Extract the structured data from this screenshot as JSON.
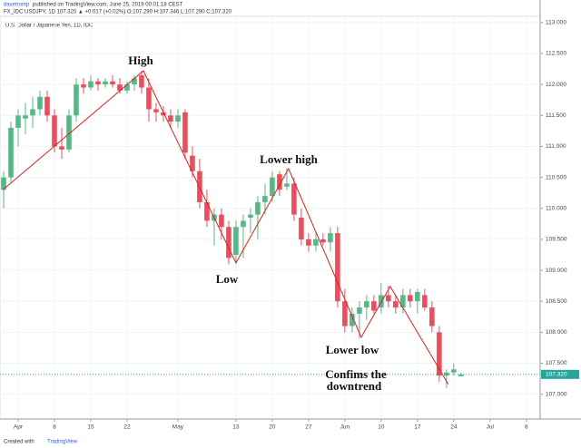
{
  "header": {
    "author": "davetromp",
    "published": "published on TradingView.com, June 25, 2019 00:01:18 CEST",
    "quote": "FX_IDC:USDJPY, 1D 107.320 ▲ +0.017 (+0.02%) O:107.290 H:107.346 L:107.290 C:107.320"
  },
  "footer": {
    "text": "Created with",
    "brand": "TradingView"
  },
  "chart_data": {
    "type": "candlestick",
    "subtitle": "U.S. Dollar / Japanese Yen, 1D, IDC",
    "up_color": "#53b987",
    "down_color": "#eb4d5c",
    "grid": true,
    "xlim": [
      -2.5,
      71.9
    ],
    "ylim": [
      106.6,
      113.1
    ],
    "xticks": [
      {
        "value": 0,
        "label": "Apr"
      },
      {
        "value": 5,
        "label": "8"
      },
      {
        "value": 10,
        "label": "15"
      },
      {
        "value": 15,
        "label": "22"
      },
      {
        "value": 22,
        "label": "May"
      },
      {
        "value": 30,
        "label": "13"
      },
      {
        "value": 35,
        "label": "20"
      },
      {
        "value": 40,
        "label": "27"
      },
      {
        "value": 45,
        "label": "Jun"
      },
      {
        "value": 50,
        "label": "10"
      },
      {
        "value": 55,
        "label": "17"
      },
      {
        "value": 60,
        "label": "24"
      },
      {
        "value": 65,
        "label": "Jul"
      },
      {
        "value": 70,
        "label": "8"
      }
    ],
    "yticks": [
      {
        "value": 107,
        "label": "107.000"
      },
      {
        "value": 107.5,
        "label": "107.500"
      },
      {
        "value": 108,
        "label": "108.000"
      },
      {
        "value": 108.5,
        "label": "108.500"
      },
      {
        "value": 109,
        "label": "109.000"
      },
      {
        "value": 109.5,
        "label": "109.500"
      },
      {
        "value": 110,
        "label": "110.000"
      },
      {
        "value": 110.5,
        "label": "110.500"
      },
      {
        "value": 111,
        "label": "111.000"
      },
      {
        "value": 111.5,
        "label": "111.500"
      },
      {
        "value": 112,
        "label": "112.000"
      },
      {
        "value": 112.5,
        "label": "112.500"
      },
      {
        "value": 113,
        "label": "113.000"
      }
    ],
    "last_price": {
      "value": 107.32,
      "label": "107.320",
      "color": "#26a69a"
    },
    "x": [
      -2,
      -1,
      0,
      1,
      2,
      3,
      4,
      5,
      6,
      7,
      8,
      9,
      10,
      11,
      12,
      13,
      14,
      15,
      16,
      17,
      18,
      19,
      20,
      21,
      22,
      23,
      24,
      25,
      26,
      27,
      28,
      29,
      30,
      31,
      32,
      33,
      34,
      35,
      36,
      37,
      38,
      39,
      40,
      41,
      42,
      43,
      44,
      45,
      46,
      47,
      48,
      49,
      50,
      51,
      52,
      53,
      54,
      55,
      56,
      57,
      58,
      59,
      60,
      61
    ],
    "open": [
      110.3,
      110.5,
      111.3,
      111.45,
      111.5,
      111.6,
      111.8,
      111.5,
      111.0,
      110.95,
      111.5,
      112.0,
      111.95,
      112.05,
      112.0,
      112.05,
      112.0,
      111.9,
      112.0,
      112.15,
      111.95,
      111.6,
      111.55,
      111.5,
      111.4,
      111.55,
      110.85,
      110.6,
      110.1,
      109.8,
      109.9,
      109.7,
      109.25,
      109.7,
      109.85,
      109.9,
      110.1,
      110.2,
      110.55,
      110.35,
      110.4,
      109.85,
      109.5,
      109.4,
      109.5,
      109.45,
      109.6,
      108.5,
      108.1,
      108.3,
      108.4,
      108.5,
      108.4,
      108.6,
      108.5,
      108.4,
      108.6,
      108.5,
      108.6,
      108.4,
      108.0,
      107.3,
      107.35,
      107.29
    ],
    "high": [
      110.6,
      111.4,
      111.6,
      111.7,
      111.8,
      111.9,
      111.9,
      111.6,
      111.3,
      111.6,
      112.1,
      112.1,
      112.15,
      112.1,
      112.1,
      112.15,
      112.1,
      112.05,
      112.15,
      112.22,
      112.1,
      111.7,
      111.65,
      111.6,
      111.6,
      111.6,
      111.0,
      110.8,
      110.3,
      110.0,
      110.0,
      109.8,
      109.8,
      109.9,
      110.0,
      110.2,
      110.4,
      110.6,
      110.6,
      110.65,
      110.5,
      110.0,
      109.6,
      109.6,
      109.6,
      109.7,
      109.7,
      108.7,
      108.4,
      108.5,
      108.6,
      108.6,
      108.8,
      108.75,
      108.6,
      108.7,
      108.7,
      108.7,
      108.7,
      108.5,
      108.1,
      107.4,
      107.5,
      107.346
    ],
    "low": [
      110.0,
      110.4,
      111.0,
      111.2,
      111.3,
      111.5,
      111.4,
      110.9,
      110.8,
      110.9,
      111.4,
      111.85,
      111.9,
      111.9,
      111.95,
      111.95,
      111.85,
      111.85,
      111.9,
      111.85,
      111.4,
      111.4,
      111.4,
      111.3,
      111.3,
      110.8,
      110.5,
      110.0,
      109.7,
      109.4,
      109.5,
      109.1,
      109.1,
      109.2,
      109.6,
      109.5,
      109.9,
      110.1,
      110.2,
      110.3,
      109.8,
      109.4,
      109.3,
      109.3,
      109.4,
      109.3,
      108.4,
      108.0,
      108.0,
      107.9,
      108.2,
      108.3,
      108.3,
      108.4,
      108.3,
      108.3,
      108.4,
      108.3,
      108.35,
      108.0,
      107.2,
      107.1,
      107.3,
      107.29
    ],
    "close": [
      110.5,
      111.3,
      111.5,
      111.5,
      111.6,
      111.8,
      111.5,
      111.0,
      110.95,
      111.5,
      112.0,
      111.95,
      112.05,
      112.0,
      112.05,
      112.0,
      111.9,
      112.0,
      112.1,
      111.95,
      111.6,
      111.55,
      111.5,
      111.4,
      111.5,
      110.9,
      110.6,
      110.1,
      109.8,
      109.9,
      109.7,
      109.2,
      109.7,
      109.8,
      109.9,
      110.1,
      110.2,
      110.5,
      110.3,
      110.4,
      109.9,
      109.5,
      109.4,
      109.5,
      109.45,
      109.6,
      108.5,
      108.1,
      108.3,
      108.4,
      108.5,
      108.35,
      108.6,
      108.5,
      108.4,
      108.6,
      108.5,
      108.65,
      108.4,
      108.1,
      107.3,
      107.35,
      107.4,
      107.32
    ],
    "trendline": {
      "color": "#e0201b",
      "x": [
        -2.1,
        17.25,
        30,
        37.25,
        47.25,
        51.25,
        59.25
      ],
      "y": [
        110.3,
        112.22,
        109.12,
        110.64,
        107.92,
        108.74,
        107.16
      ]
    },
    "annotations": [
      "High",
      "Low",
      "Lower high",
      "Lower low",
      "Confims the",
      "downtrend"
    ]
  }
}
